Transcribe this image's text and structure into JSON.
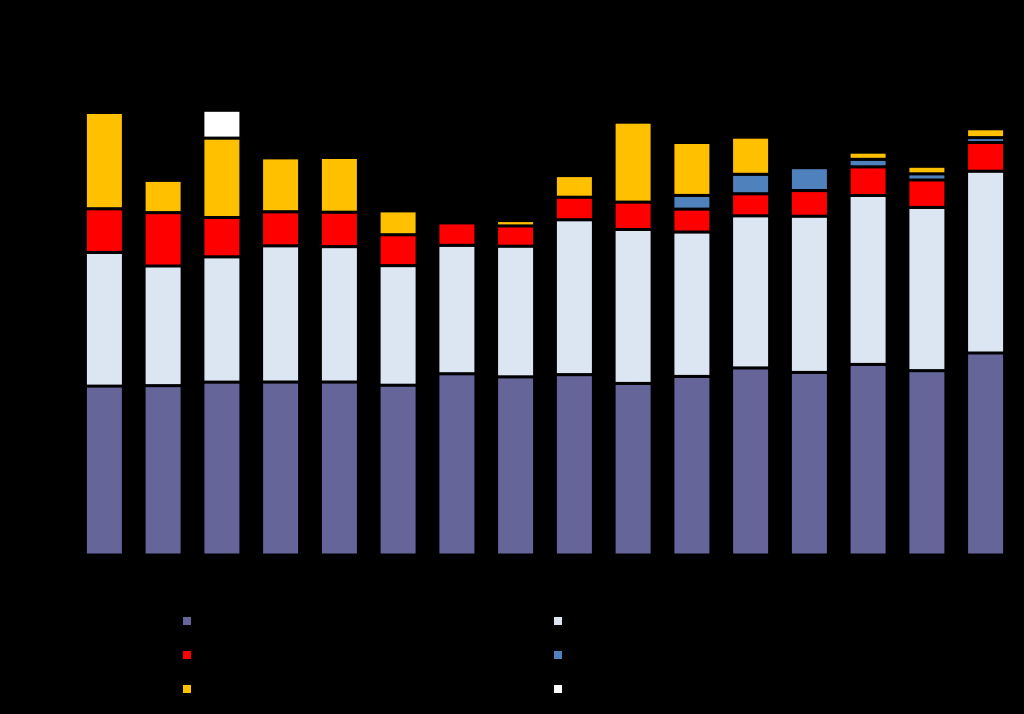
{
  "chart_data": {
    "type": "bar",
    "stacked": true,
    "title": "",
    "xlabel": "",
    "ylabel": "",
    "categories": [
      "",
      "",
      "",
      "",
      "",
      "",
      "",
      "",
      "",
      "",
      "",
      "",
      "",
      "",
      "",
      ""
    ],
    "ylim": [
      0,
      1.02
    ],
    "grid": false,
    "legend": {
      "placement": "bottom",
      "columns": 2
    },
    "series": [
      {
        "color": "#65659a",
        "values": [
          0.383,
          0.384,
          0.392,
          0.392,
          0.392,
          0.385,
          0.411,
          0.404,
          0.409,
          0.389,
          0.405,
          0.424,
          0.414,
          0.432,
          0.418,
          0.458
        ]
      },
      {
        "color": "#dce6f2",
        "values": [
          0.303,
          0.271,
          0.284,
          0.309,
          0.307,
          0.271,
          0.291,
          0.296,
          0.351,
          0.349,
          0.327,
          0.345,
          0.354,
          0.383,
          0.37,
          0.412
        ]
      },
      {
        "color": "#ff0000",
        "values": [
          0.099,
          0.121,
          0.089,
          0.077,
          0.078,
          0.07,
          0.051,
          0.046,
          0.051,
          0.062,
          0.052,
          0.05,
          0.058,
          0.065,
          0.062,
          0.065
        ]
      },
      {
        "color": "#4f81bd",
        "values": [
          0,
          0,
          0,
          0,
          0,
          0,
          0,
          0,
          0,
          0,
          0.031,
          0.044,
          0.052,
          0.017,
          0.014,
          0.011
        ]
      },
      {
        "color": "#ffc000",
        "values": [
          0.218,
          0.073,
          0.18,
          0.122,
          0.124,
          0.054,
          0.004,
          0.012,
          0.049,
          0.181,
          0.12,
          0.084,
          0.006,
          0.016,
          0.017,
          0.02
        ]
      },
      {
        "color": "#ffffff",
        "values": [
          0,
          0,
          0.063,
          0,
          0,
          0,
          0,
          0,
          0,
          0,
          0,
          0,
          0,
          0,
          0,
          0
        ]
      }
    ]
  }
}
